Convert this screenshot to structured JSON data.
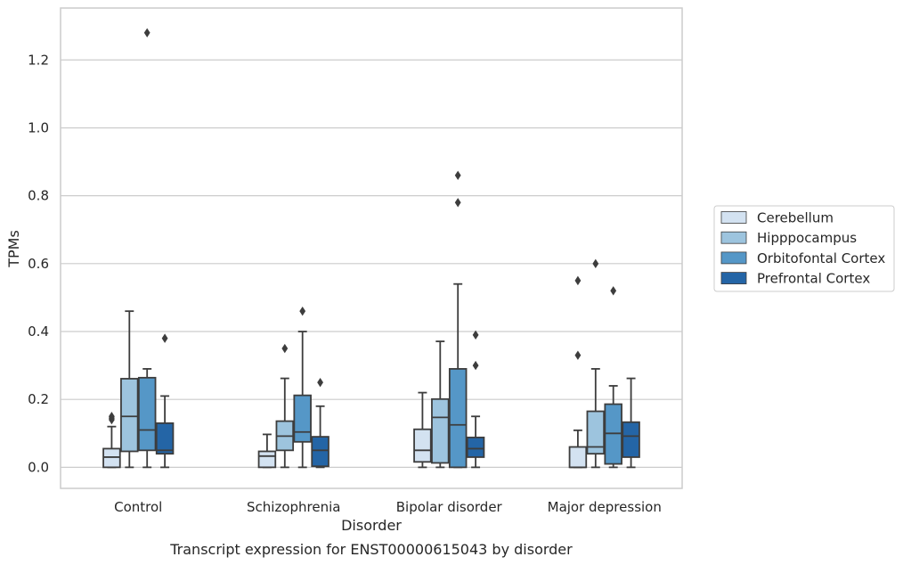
{
  "chart_data": {
    "type": "box",
    "title": "",
    "caption": "Transcript expression for ENST00000615043 by disorder",
    "xlabel": "Disorder",
    "ylabel": "TPMs",
    "ylim": [
      -0.062,
      1.353
    ],
    "yticks": [
      0.0,
      0.2,
      0.4,
      0.6,
      0.8,
      1.0,
      1.2
    ],
    "ytick_labels": [
      "0.0",
      "0.2",
      "0.4",
      "0.6",
      "0.8",
      "1.0",
      "1.2"
    ],
    "grid": "horizontal",
    "legend_position": "right",
    "categories": [
      "Control",
      "Schizophrenia",
      "Bipolar disorder",
      "Major depression"
    ],
    "series": [
      {
        "name": "Cerebellum",
        "color": "#d3e2f1",
        "boxes": [
          {
            "whisker_low": 0.0,
            "q1": 0.0,
            "median": 0.03,
            "q3": 0.055,
            "whisker_high": 0.12,
            "outliers": [
              0.14,
              0.145,
              0.15
            ]
          },
          {
            "whisker_low": 0.0,
            "q1": 0.0,
            "median": 0.033,
            "q3": 0.047,
            "whisker_high": 0.097,
            "outliers": []
          },
          {
            "whisker_low": 0.0,
            "q1": 0.016,
            "median": 0.05,
            "q3": 0.112,
            "whisker_high": 0.22,
            "outliers": []
          },
          {
            "whisker_low": 0.0,
            "q1": 0.0,
            "median": 0.0,
            "q3": 0.06,
            "whisker_high": 0.109,
            "outliers": [
              0.33,
              0.55
            ]
          }
        ]
      },
      {
        "name": "Hipppocampus",
        "color": "#9dc4de",
        "boxes": [
          {
            "whisker_low": 0.0,
            "q1": 0.047,
            "median": 0.15,
            "q3": 0.261,
            "whisker_high": 0.46,
            "outliers": []
          },
          {
            "whisker_low": 0.0,
            "q1": 0.05,
            "median": 0.092,
            "q3": 0.136,
            "whisker_high": 0.262,
            "outliers": [
              0.35
            ]
          },
          {
            "whisker_low": 0.0,
            "q1": 0.013,
            "median": 0.147,
            "q3": 0.201,
            "whisker_high": 0.371,
            "outliers": []
          },
          {
            "whisker_low": 0.0,
            "q1": 0.04,
            "median": 0.06,
            "q3": 0.165,
            "whisker_high": 0.29,
            "outliers": [
              0.6
            ]
          }
        ]
      },
      {
        "name": "Orbitofontal Cortex",
        "color": "#5597c7",
        "boxes": [
          {
            "whisker_low": 0.0,
            "q1": 0.05,
            "median": 0.11,
            "q3": 0.264,
            "whisker_high": 0.29,
            "outliers": [
              1.28
            ]
          },
          {
            "whisker_low": 0.0,
            "q1": 0.075,
            "median": 0.104,
            "q3": 0.212,
            "whisker_high": 0.4,
            "outliers": [
              0.46
            ]
          },
          {
            "whisker_low": 0.0,
            "q1": 0.0,
            "median": 0.125,
            "q3": 0.29,
            "whisker_high": 0.54,
            "outliers": [
              0.78,
              0.86
            ]
          },
          {
            "whisker_low": 0.0,
            "q1": 0.01,
            "median": 0.1,
            "q3": 0.186,
            "whisker_high": 0.24,
            "outliers": [
              0.52
            ]
          }
        ]
      },
      {
        "name": "Prefrontal Cortex",
        "color": "#2465a6",
        "boxes": [
          {
            "whisker_low": 0.0,
            "q1": 0.04,
            "median": 0.05,
            "q3": 0.13,
            "whisker_high": 0.21,
            "outliers": [
              0.38
            ]
          },
          {
            "whisker_low": 0.0,
            "q1": 0.003,
            "median": 0.05,
            "q3": 0.09,
            "whisker_high": 0.18,
            "outliers": [
              0.25
            ]
          },
          {
            "whisker_low": 0.0,
            "q1": 0.03,
            "median": 0.055,
            "q3": 0.088,
            "whisker_high": 0.15,
            "outliers": [
              0.3,
              0.39
            ]
          },
          {
            "whisker_low": 0.0,
            "q1": 0.03,
            "median": 0.092,
            "q3": 0.133,
            "whisker_high": 0.262,
            "outliers": []
          }
        ]
      }
    ]
  }
}
